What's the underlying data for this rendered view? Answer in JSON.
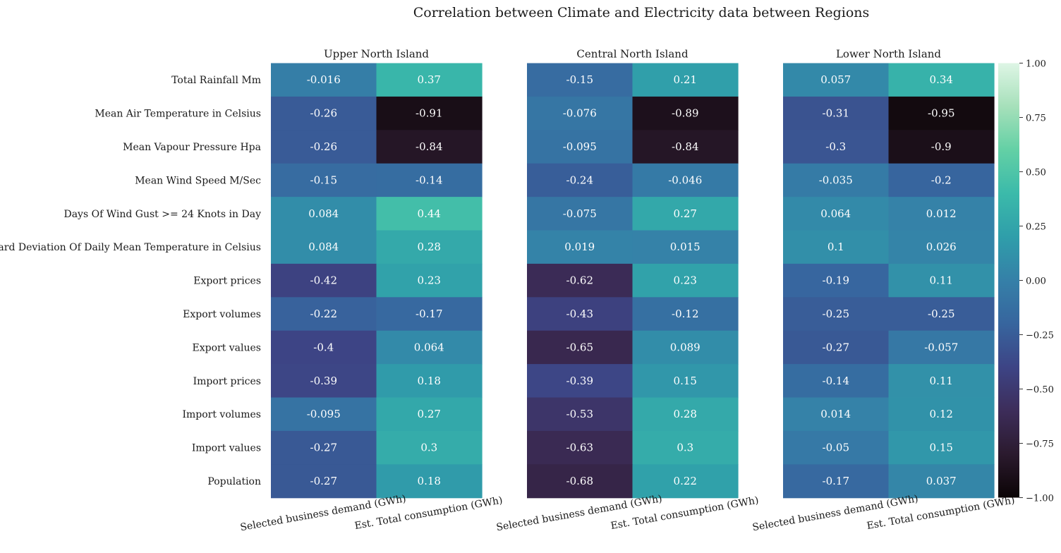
{
  "chart_data": {
    "type": "heatmap",
    "title": "Correlation between Climate and Electricity data between Regions",
    "rows": [
      "Total Rainfall Mm",
      "Mean Air Temperature in Celsius",
      "Mean Vapour Pressure Hpa",
      "Mean Wind Speed M/Sec",
      "Days Of Wind Gust >= 24 Knots in Day",
      "Standard Deviation Of Daily Mean Temperature in Celsius",
      "Export prices",
      "Export volumes",
      "Export values",
      "Import prices",
      "Import volumes",
      "Import values",
      "Population"
    ],
    "columns": [
      "Selected business demand (GWh)",
      "Est. Total consumption (GWh)"
    ],
    "panels": [
      {
        "title": "Upper North Island",
        "values": [
          [
            -0.016,
            0.37
          ],
          [
            -0.26,
            -0.91
          ],
          [
            -0.26,
            -0.84
          ],
          [
            -0.15,
            -0.14
          ],
          [
            0.084,
            0.44
          ],
          [
            0.084,
            0.28
          ],
          [
            -0.42,
            0.23
          ],
          [
            -0.22,
            -0.17
          ],
          [
            -0.4,
            0.064
          ],
          [
            -0.39,
            0.18
          ],
          [
            -0.095,
            0.27
          ],
          [
            -0.27,
            0.3
          ],
          [
            -0.27,
            0.18
          ]
        ]
      },
      {
        "title": "Central North Island",
        "values": [
          [
            -0.15,
            0.21
          ],
          [
            -0.076,
            -0.89
          ],
          [
            -0.095,
            -0.84
          ],
          [
            -0.24,
            -0.046
          ],
          [
            -0.075,
            0.27
          ],
          [
            0.019,
            0.015
          ],
          [
            -0.62,
            0.23
          ],
          [
            -0.43,
            -0.12
          ],
          [
            -0.65,
            0.089
          ],
          [
            -0.39,
            0.15
          ],
          [
            -0.53,
            0.28
          ],
          [
            -0.63,
            0.3
          ],
          [
            -0.68,
            0.22
          ]
        ]
      },
      {
        "title": "Lower North Island",
        "values": [
          [
            0.057,
            0.34
          ],
          [
            -0.31,
            -0.95
          ],
          [
            -0.3,
            -0.9
          ],
          [
            -0.035,
            -0.2
          ],
          [
            0.064,
            0.012
          ],
          [
            0.1,
            0.026
          ],
          [
            -0.19,
            0.11
          ],
          [
            -0.25,
            -0.25
          ],
          [
            -0.27,
            -0.057
          ],
          [
            -0.14,
            0.11
          ],
          [
            0.014,
            0.12
          ],
          [
            -0.05,
            0.15
          ],
          [
            -0.17,
            0.037
          ]
        ]
      }
    ],
    "colorbar": {
      "range": [
        -1,
        1
      ],
      "ticks": [
        1,
        0.75,
        0.5,
        0.25,
        0,
        -0.25,
        -0.5,
        -0.75,
        -1
      ],
      "tick_labels": [
        "1.00",
        "0.75",
        "0.50",
        "0.25",
        "0.00",
        "−0.25",
        "−0.50",
        "−0.75",
        "−1.00"
      ]
    },
    "colormap": "mako",
    "colormap_stops": [
      "#0b0405",
      "#2b1a2e",
      "#3d2d5a",
      "#3d4485",
      "#37659e",
      "#3580a8",
      "#2f9eaa",
      "#3bbaaa",
      "#63d0a5",
      "#a6e0ba",
      "#def5e5"
    ]
  }
}
